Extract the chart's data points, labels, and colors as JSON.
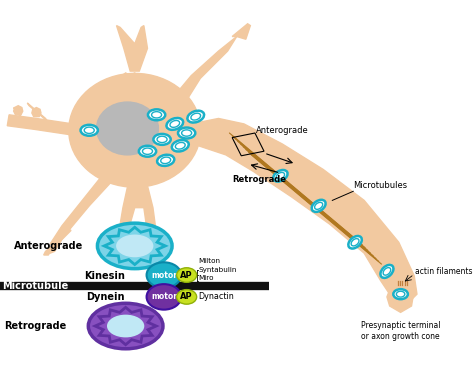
{
  "bg_color": "#ffffff",
  "neuron_body_color": "#f2c9a0",
  "nucleus_color": "#b8b8b8",
  "mito_cyan_outer": "#1ab0c8",
  "mito_cyan_fill": "#7dd4e8",
  "mito_purple_outer": "#6030a0",
  "mito_purple_fill": "#8850c0",
  "motor_kinesin_color": "#1ab0c8",
  "motor_dynein_color": "#7030a0",
  "ap_color": "#c8e020",
  "microtubule_bar_color": "#111111",
  "axon_mt_color": "#b07820",
  "figsize": [
    4.74,
    3.68
  ],
  "dpi": 100,
  "labels": {
    "anterograde_axon": "Anterograde",
    "retrograde_axon": "Retrograde",
    "microtubules_axon": "Microtubules",
    "kinesin": "Kinesin",
    "dynein": "Dynein",
    "motor": "motor",
    "ap": "AP",
    "adaptor": "Milton\nSyntabulin\nMiro",
    "dynactin": "Dynactin",
    "microtubule_label": "Microtubule",
    "anterograde_label": "Anterograde",
    "retrograde_label": "Retrograde",
    "actin_filaments": "actin filaments",
    "presynaptic": "Presynaptic terminal\nor axon growth cone"
  }
}
